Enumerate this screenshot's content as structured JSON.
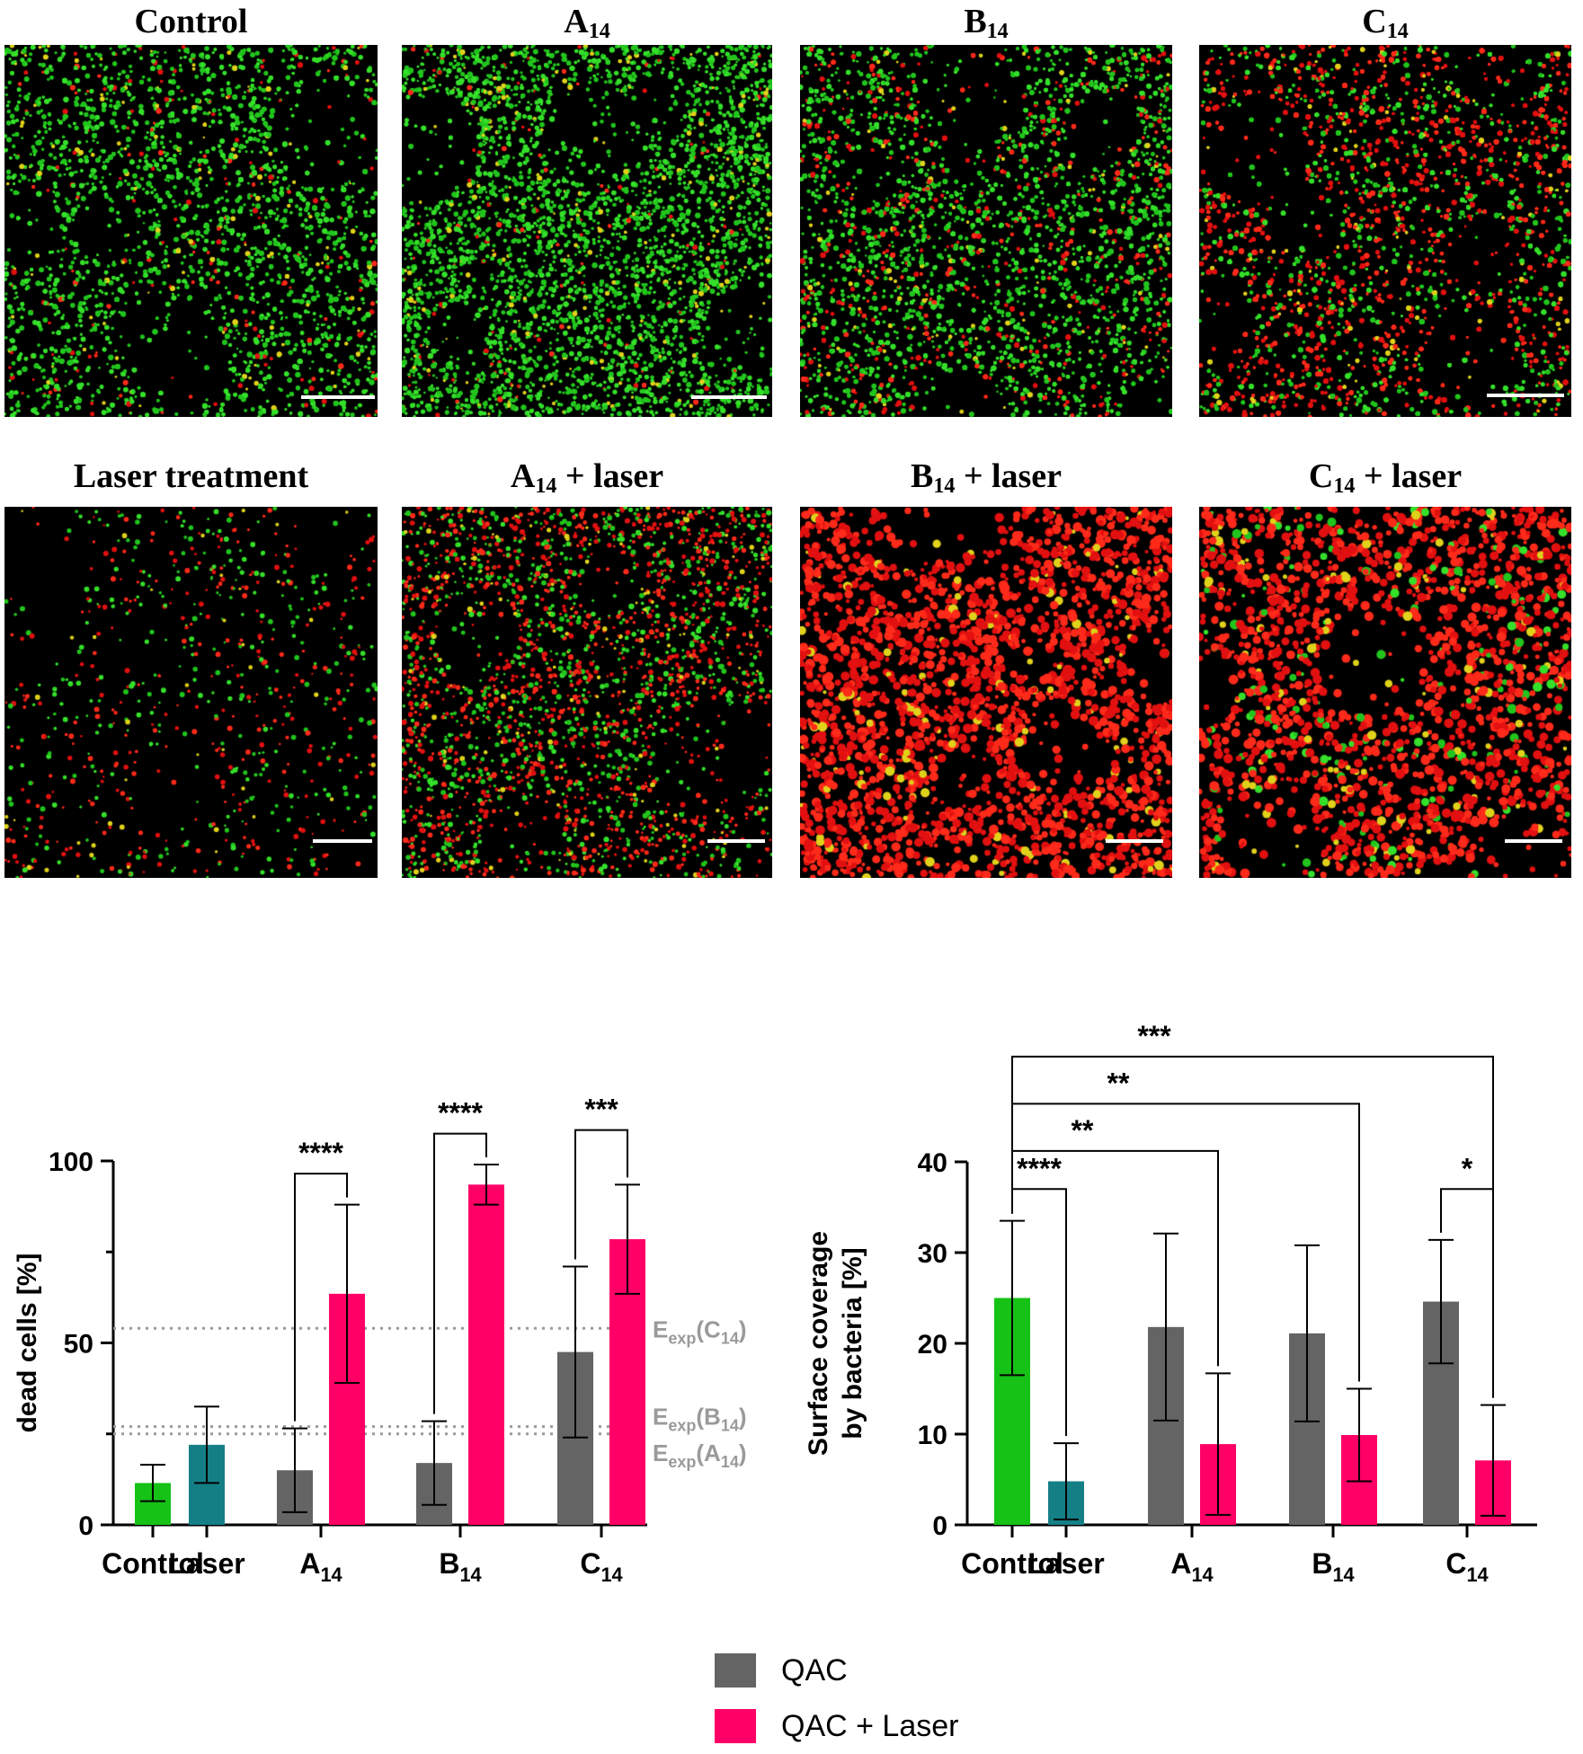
{
  "microscopy": {
    "rows": [
      [
        {
          "title_main": "Control",
          "title_sub": ""
        },
        {
          "title_main": "A",
          "title_sub": "14"
        },
        {
          "title_main": "B",
          "title_sub": "14"
        },
        {
          "title_main": "C",
          "title_sub": "14"
        }
      ],
      [
        {
          "title_main": "Laser treatment",
          "title_sub": ""
        },
        {
          "title_main": "A",
          "title_sub": "14",
          "title_suffix": " + laser"
        },
        {
          "title_main": "B",
          "title_sub": "14",
          "title_suffix": " + laser"
        },
        {
          "title_main": "C",
          "title_sub": "14",
          "title_suffix": " + laser"
        }
      ]
    ]
  },
  "colors": {
    "control": "#16c216",
    "laser": "#157f86",
    "qac": "#646464",
    "qac_laser": "#ff0066",
    "reference": "#9a9a9a"
  },
  "chart_data": [
    {
      "type": "bar",
      "ylabel": "dead cells [%]",
      "ylim": [
        0,
        100
      ],
      "yticks": [
        "0",
        "50",
        "100"
      ],
      "groups": [
        {
          "main": "Control",
          "sub": ""
        },
        {
          "main": "Laser",
          "sub": ""
        },
        {
          "main": "A",
          "sub": "14"
        },
        {
          "main": "B",
          "sub": "14"
        },
        {
          "main": "C",
          "sub": "14"
        }
      ],
      "bars": [
        {
          "group": 0,
          "slot": "single",
          "color": "control",
          "value": 11.5,
          "error": 5
        },
        {
          "group": 1,
          "slot": "single",
          "color": "laser",
          "value": 22,
          "error": 10.5
        },
        {
          "group": 2,
          "slot": "left",
          "color": "qac",
          "value": 15,
          "error": 11.5
        },
        {
          "group": 2,
          "slot": "right",
          "color": "qac_laser",
          "value": 63.5,
          "error": 24.5
        },
        {
          "group": 3,
          "slot": "left",
          "color": "qac",
          "value": 17,
          "error": 11.5
        },
        {
          "group": 3,
          "slot": "right",
          "color": "qac_laser",
          "value": 93.5,
          "error": 5.5
        },
        {
          "group": 4,
          "slot": "left",
          "color": "qac",
          "value": 47.5,
          "error": 23.5
        },
        {
          "group": 4,
          "slot": "right",
          "color": "qac_laser",
          "value": 78.5,
          "error": 15
        }
      ],
      "reference_lines": [
        {
          "value": 54,
          "main": "E",
          "sub": "exp",
          "arg_main": "C",
          "arg_sub": "14"
        },
        {
          "value": 27,
          "main": "E",
          "sub": "exp",
          "arg_main": "B",
          "arg_sub": "14"
        },
        {
          "value": 25,
          "main": "E",
          "sub": "exp",
          "arg_main": "A",
          "arg_sub": "14"
        }
      ],
      "significance": [
        {
          "from": 2,
          "to": 3,
          "y_value": 96.5,
          "label": "****"
        },
        {
          "from": 4,
          "to": 5,
          "y_value": 107.5,
          "label": "****"
        },
        {
          "from": 6,
          "to": 7,
          "y_value": 108.5,
          "label": "***"
        }
      ]
    },
    {
      "type": "bar",
      "ylabel": "Surface coverage by bacteria [%]",
      "ylabel_lines": [
        "Surface coverage",
        "by bacteria [%]"
      ],
      "ylim": [
        0,
        40
      ],
      "yticks": [
        "0",
        "10",
        "20",
        "30",
        "40"
      ],
      "groups": [
        {
          "main": "Control",
          "sub": ""
        },
        {
          "main": "Laser",
          "sub": ""
        },
        {
          "main": "A",
          "sub": "14"
        },
        {
          "main": "B",
          "sub": "14"
        },
        {
          "main": "C",
          "sub": "14"
        }
      ],
      "bars": [
        {
          "group": 0,
          "slot": "single",
          "color": "control",
          "value": 25,
          "error": 8.5
        },
        {
          "group": 1,
          "slot": "single",
          "color": "laser",
          "value": 4.8,
          "error": 4.2
        },
        {
          "group": 2,
          "slot": "left",
          "color": "qac",
          "value": 21.8,
          "error": 10.3
        },
        {
          "group": 2,
          "slot": "right",
          "color": "qac_laser",
          "value": 8.9,
          "error": 7.8
        },
        {
          "group": 3,
          "slot": "left",
          "color": "qac",
          "value": 21.1,
          "error": 9.7
        },
        {
          "group": 3,
          "slot": "right",
          "color": "qac_laser",
          "value": 9.9,
          "error": 5.1
        },
        {
          "group": 4,
          "slot": "left",
          "color": "qac",
          "value": 24.6,
          "error": 6.8
        },
        {
          "group": 4,
          "slot": "right",
          "color": "qac_laser",
          "value": 7.1,
          "error": 6.1
        }
      ],
      "significance": [
        {
          "from": 0,
          "to": 1,
          "y_value": 37,
          "label": "****"
        },
        {
          "from": 0,
          "to": 3,
          "y_value": 41.2,
          "label": "**"
        },
        {
          "from": 0,
          "to": 5,
          "y_value": 46.4,
          "label": "**"
        },
        {
          "from": 0,
          "to": 7,
          "y_value": 51.6,
          "label": "***"
        },
        {
          "from": 6,
          "to": 7,
          "y_value": 37,
          "label": "*"
        }
      ]
    }
  ],
  "legend": [
    {
      "label": "QAC",
      "color": "qac"
    },
    {
      "label": "QAC + Laser",
      "color": "qac_laser"
    }
  ]
}
